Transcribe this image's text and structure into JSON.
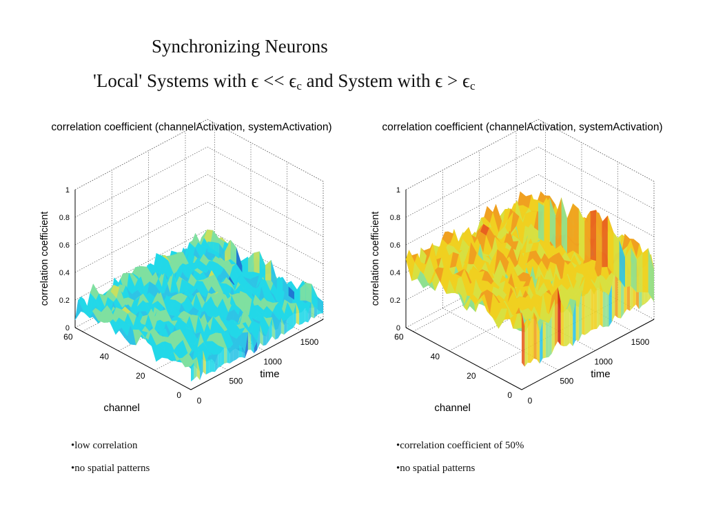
{
  "slide": {
    "title": "Synchronizing Neurons",
    "subtitle": {
      "part1": "'Local' Systems with ",
      "eps1": "ϵ",
      "op1": " << ",
      "eps2": "ϵ",
      "sub2": "c",
      "part2": " and System with ",
      "eps3": "ϵ",
      "op2": " > ",
      "eps4": "ϵ",
      "sub4": "c"
    },
    "left_bullets": [
      "•low correlation",
      "•no spatial patterns"
    ],
    "right_bullets": [
      "•correlation coefficient of 50%",
      "•no spatial patterns"
    ]
  },
  "chart_data": [
    {
      "type": "surface",
      "title": "correlation coefficient (channelActivation, systemActivation)",
      "xlabel": "time",
      "ylabel": "channel",
      "zlabel": "correlation coefficient",
      "x_ticks": [
        0,
        500,
        1000,
        1500
      ],
      "y_ticks": [
        0,
        20,
        40,
        60
      ],
      "z_ticks": [
        0,
        0.2,
        0.4,
        0.6,
        0.8,
        1
      ],
      "z_tick_labels": [
        "0",
        "0.2",
        "0.4",
        "0.6",
        "0.8",
        "1"
      ],
      "xlim": [
        0,
        1800
      ],
      "ylim": [
        0,
        64
      ],
      "zlim": [
        0,
        1
      ],
      "grid": true,
      "colormap": "jet",
      "mean_value": 0.15,
      "spread": 0.09,
      "surface_colors": [
        "#1a3fbf",
        "#1f6fd0",
        "#2ec4e6",
        "#22d8e8",
        "#7fe0a0",
        "#c7e060",
        "#e8e030"
      ]
    },
    {
      "type": "surface",
      "title": "correlation coefficient (channelActivation, systemActivation)",
      "xlabel": "time",
      "ylabel": "channel",
      "zlabel": "correlation coefficient",
      "x_ticks": [
        0,
        500,
        1000,
        1500
      ],
      "y_ticks": [
        0,
        20,
        40,
        60
      ],
      "z_ticks": [
        0,
        0.2,
        0.4,
        0.6,
        0.8,
        1
      ],
      "z_tick_labels": [
        "0",
        "0.2",
        "0.4",
        "0.6",
        "0.8",
        "1"
      ],
      "xlim": [
        0,
        1800
      ],
      "ylim": [
        0,
        64
      ],
      "zlim": [
        0,
        1
      ],
      "grid": true,
      "colormap": "jet",
      "mean_value": 0.45,
      "spread": 0.12,
      "surface_colors": [
        "#1f5fd0",
        "#2ec4e6",
        "#8fe090",
        "#d8e040",
        "#f0d020",
        "#f0a020",
        "#e86020",
        "#d02818"
      ]
    }
  ]
}
